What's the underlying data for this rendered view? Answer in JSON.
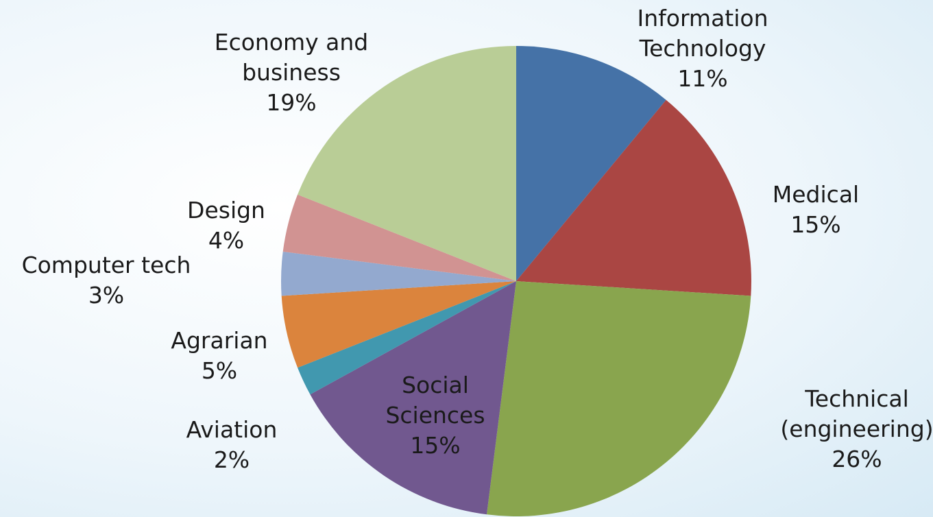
{
  "chart_data": {
    "type": "pie",
    "categories": [
      "Information Technology",
      "Medical",
      "Technical (engineering)",
      "Social Sciences",
      "Aviation",
      "Agrarian",
      "Computer tech",
      "Design",
      "Economy and business"
    ],
    "values": [
      11,
      15,
      26,
      15,
      2,
      5,
      3,
      4,
      19
    ],
    "value_labels": [
      "11%",
      "15%",
      "26%",
      "15%",
      "2%",
      "5%",
      "3%",
      "4%",
      "19%"
    ],
    "colors": [
      "#4572a7",
      "#aa4643",
      "#89a54e",
      "#71588f",
      "#4198af",
      "#db843d",
      "#93a9cf",
      "#d19392",
      "#b9cd96"
    ]
  }
}
